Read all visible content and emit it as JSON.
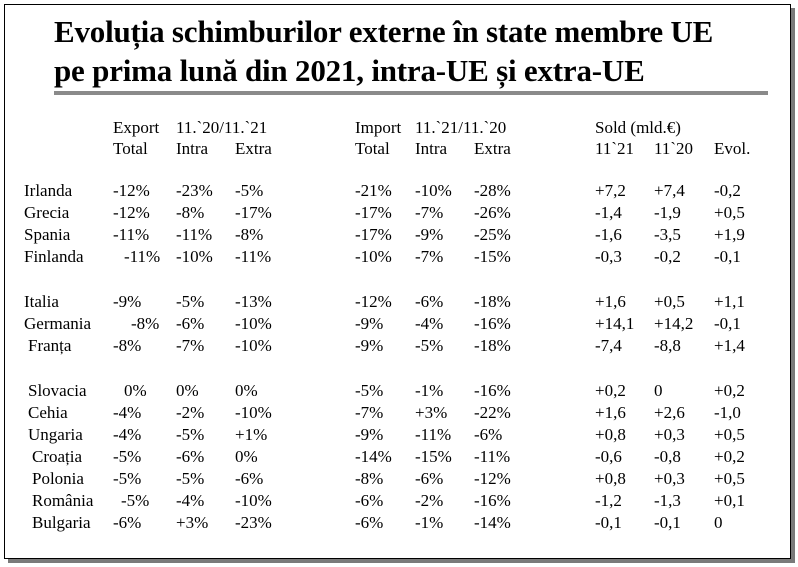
{
  "title": {
    "line1": "Evoluția schimburilor externe în state membre UE",
    "line2": "pe prima lună din 2021, intra-UE și extra-UE"
  },
  "headers": {
    "export_group": "Export",
    "export_period": "11.`20/11.`21",
    "import_group": "Import",
    "import_period": "11.`21/11.`20",
    "sold_group": "Sold (mld.€)",
    "cols": [
      "Total",
      "Intra",
      "Extra",
      "Total",
      "Intra",
      "Extra",
      "11`21",
      "11`20",
      "Evol."
    ]
  },
  "rows": [
    [
      "Irlanda",
      "-12%",
      "-23%",
      "-5%",
      "-21%",
      "-10%",
      "-28%",
      "+7,2",
      "+7,4",
      "-0,2"
    ],
    [
      "Grecia",
      "-12%",
      "-8%",
      "-17%",
      "-17%",
      "-7%",
      "-26%",
      "-1,4",
      "-1,9",
      "+0,5"
    ],
    [
      "Spania",
      "-11%",
      "-11%",
      "-8%",
      "-17%",
      "-9%",
      "-25%",
      "-1,6",
      "-3,5",
      "+1,9"
    ],
    [
      "Finlanda",
      "-11%",
      "-10%",
      "-11%",
      "-10%",
      "-7%",
      "-15%",
      "-0,3",
      "-0,2",
      "-0,1"
    ],
    [
      "Italia",
      "-9%",
      "-5%",
      "-13%",
      "-12%",
      "-6%",
      "-18%",
      "+1,6",
      "+0,5",
      "+1,1"
    ],
    [
      "Germania",
      "-8%",
      "-6%",
      "-10%",
      "-9%",
      "-4%",
      "-16%",
      "+14,1",
      "+14,2",
      "-0,1"
    ],
    [
      "Franța",
      "-8%",
      "-7%",
      "-10%",
      "-9%",
      "-5%",
      "-18%",
      "-7,4",
      "-8,8",
      "+1,4"
    ],
    [
      "Slovacia",
      "0%",
      "0%",
      "0%",
      "-5%",
      "-1%",
      "-16%",
      "+0,2",
      "0",
      "+0,2"
    ],
    [
      "Cehia",
      "-4%",
      "-2%",
      "-10%",
      "-7%",
      "+3%",
      "-22%",
      "+1,6",
      "+2,6",
      "-1,0"
    ],
    [
      "Ungaria",
      "-4%",
      "-5%",
      "+1%",
      "-9%",
      "-11%",
      "-6%",
      "+0,8",
      "+0,3",
      "+0,5"
    ],
    [
      "Croația",
      "-5%",
      "-6%",
      "0%",
      "-14%",
      "-15%",
      "-11%",
      "-0,6",
      "-0,8",
      "+0,2"
    ],
    [
      "Polonia",
      "-5%",
      "-5%",
      "-6%",
      "-8%",
      "-6%",
      "-12%",
      "+0,8",
      "+0,3",
      "+0,5"
    ],
    [
      "România",
      "-5%",
      "-4%",
      "-10%",
      "-6%",
      "-2%",
      "-16%",
      "-1,2",
      "-1,3",
      "+0,1"
    ],
    [
      "Bulgaria",
      "-6%",
      "+3%",
      "-23%",
      "-6%",
      "-1%",
      "-14%",
      "-0,1",
      "-0,1",
      "0"
    ]
  ]
}
